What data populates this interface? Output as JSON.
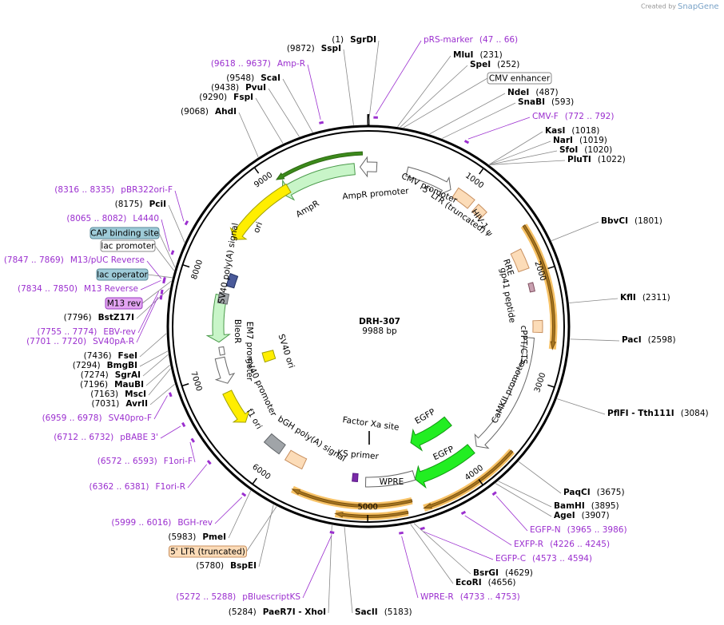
{
  "credit": "Created by",
  "brand": "SnapGene",
  "title": "DRH-307",
  "size": "9988 bp",
  "sites": [
    {
      "name": "SgrDI",
      "pos": "(1)"
    },
    {
      "name": "SspI",
      "pos": "(9872)"
    },
    {
      "name": "ScaI",
      "pos": "(9548)"
    },
    {
      "name": "PvuI",
      "pos": "(9438)"
    },
    {
      "name": "FspI",
      "pos": "(9290)"
    },
    {
      "name": "AhdI",
      "pos": "(9068)"
    },
    {
      "name": "MluI",
      "pos": "(231)"
    },
    {
      "name": "SpeI",
      "pos": "(252)"
    },
    {
      "name": "NdeI",
      "pos": "(487)"
    },
    {
      "name": "SnaBI",
      "pos": "(593)"
    },
    {
      "name": "KasI",
      "pos": "(1018)"
    },
    {
      "name": "NarI",
      "pos": "(1019)"
    },
    {
      "name": "SfoI",
      "pos": "(1020)"
    },
    {
      "name": "PluTI",
      "pos": "(1022)"
    },
    {
      "name": "BbvCI",
      "pos": "(1801)"
    },
    {
      "name": "KflI",
      "pos": "(2311)"
    },
    {
      "name": "PacI",
      "pos": "(2598)"
    },
    {
      "name": "PflFI - Tth111I",
      "pos": "(3084)"
    },
    {
      "name": "PaqCI",
      "pos": "(3675)"
    },
    {
      "name": "BamHI",
      "pos": "(3895)"
    },
    {
      "name": "AgeI",
      "pos": "(3907)"
    },
    {
      "name": "BsrGI",
      "pos": "(4629)"
    },
    {
      "name": "EcoRI",
      "pos": "(4656)"
    },
    {
      "name": "SacII",
      "pos": "(5183)"
    },
    {
      "name": "PaeR7I - XhoI",
      "pos": "(5284)"
    },
    {
      "name": "BspEI",
      "pos": "(5780)"
    },
    {
      "name": "PmeI",
      "pos": "(5983)"
    },
    {
      "name": "AvrII",
      "pos": "(7031)"
    },
    {
      "name": "MscI",
      "pos": "(7163)"
    },
    {
      "name": "MauBI",
      "pos": "(7196)"
    },
    {
      "name": "SgrAI",
      "pos": "(7274)"
    },
    {
      "name": "BmgBI",
      "pos": "(7294)"
    },
    {
      "name": "FseI",
      "pos": "(7436)"
    },
    {
      "name": "BstZ17I",
      "pos": "(7796)"
    },
    {
      "name": "PciI",
      "pos": "(8175)"
    }
  ],
  "primers": [
    {
      "name": "pRS-marker",
      "range": "(47 .. 66)"
    },
    {
      "name": "Amp-R",
      "range": "(9618 .. 9637)"
    },
    {
      "name": "CMV-F",
      "range": "(772 .. 792)"
    },
    {
      "name": "EGFP-N",
      "range": "(3965 .. 3986)"
    },
    {
      "name": "EXFP-R",
      "range": "(4226 .. 4245)"
    },
    {
      "name": "EGFP-C",
      "range": "(4573 .. 4594)"
    },
    {
      "name": "WPRE-R",
      "range": "(4733 .. 4753)"
    },
    {
      "name": "pBluescriptKS",
      "range": "(5272 .. 5288)"
    },
    {
      "name": "BGH-rev",
      "range": "(5999 .. 6016)"
    },
    {
      "name": "F1ori-R",
      "range": "(6362 .. 6381)"
    },
    {
      "name": "F1ori-F",
      "range": "(6572 .. 6593)"
    },
    {
      "name": "pBABE 3'",
      "range": "(6712 .. 6732)"
    },
    {
      "name": "SV40pro-F",
      "range": "(6959 .. 6978)"
    },
    {
      "name": "SV40pA-R",
      "range": "(7701 .. 7720)"
    },
    {
      "name": "EBV-rev",
      "range": "(7755 .. 7774)"
    },
    {
      "name": "M13 Reverse",
      "range": "(7834 .. 7850)"
    },
    {
      "name": "M13/pUC Reverse",
      "range": "(7847 .. 7869)"
    },
    {
      "name": "L4440",
      "range": "(8065 .. 8082)"
    },
    {
      "name": "pBR322ori-F",
      "range": "(8316 .. 8335)"
    }
  ],
  "boxes": [
    "CMV enhancer",
    "5' LTR (truncated)",
    "CAP binding site",
    "lac promoter",
    "lac operator",
    "M13 rev"
  ],
  "features": [
    "AmpR",
    "AmpR promoter",
    "CMV promoter",
    "5' LTR (truncated)",
    "HIV-1 ψ",
    "RRE",
    "gp41 peptide",
    "cPPT/CTS",
    "CaMKII promoter",
    "EGFP",
    "EGFP",
    "WPRE",
    "KS primer",
    "Factor Xa site",
    "bGH poly(A) signal",
    "f1 ori",
    "SV40 promoter",
    "EM7 promoter",
    "BleoR",
    "SV40 ori",
    "SV40 poly(A) signal",
    "ori"
  ],
  "ruler": [
    "1000",
    "2000",
    "3000",
    "4000",
    "5000",
    "6000",
    "7000",
    "8000",
    "9000"
  ]
}
